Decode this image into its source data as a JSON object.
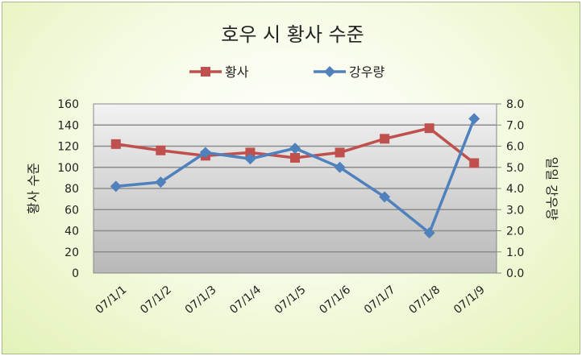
{
  "chart_data": {
    "type": "line",
    "title": "호우 시 황사 수준",
    "categories": [
      "07/1/1",
      "07/1/2",
      "07/1/3",
      "07/1/4",
      "07/1/5",
      "07/1/6",
      "07/1/7",
      "07/1/8",
      "07/1/9"
    ],
    "series": [
      {
        "name": "황사",
        "axis": "left",
        "color": "#c0504d",
        "marker": "square",
        "values": [
          122,
          116,
          111,
          114,
          109,
          114,
          127,
          137,
          104
        ]
      },
      {
        "name": "강우량",
        "axis": "right",
        "color": "#4f81bd",
        "marker": "diamond",
        "values": [
          4.1,
          4.3,
          5.7,
          5.4,
          5.9,
          5.0,
          3.6,
          1.9,
          7.3
        ]
      }
    ],
    "ylabel": "황사 수준",
    "y2label": "일일 강우량",
    "ylim": [
      0,
      160
    ],
    "y2lim": [
      0,
      8
    ],
    "yticks": [
      "0",
      "20",
      "40",
      "60",
      "80",
      "100",
      "120",
      "140",
      "160"
    ],
    "y2ticks": [
      "0.0",
      "1.0",
      "2.0",
      "3.0",
      "4.0",
      "5.0",
      "6.0",
      "7.0",
      "8.0"
    ],
    "grid": true,
    "legend_position": "top"
  }
}
